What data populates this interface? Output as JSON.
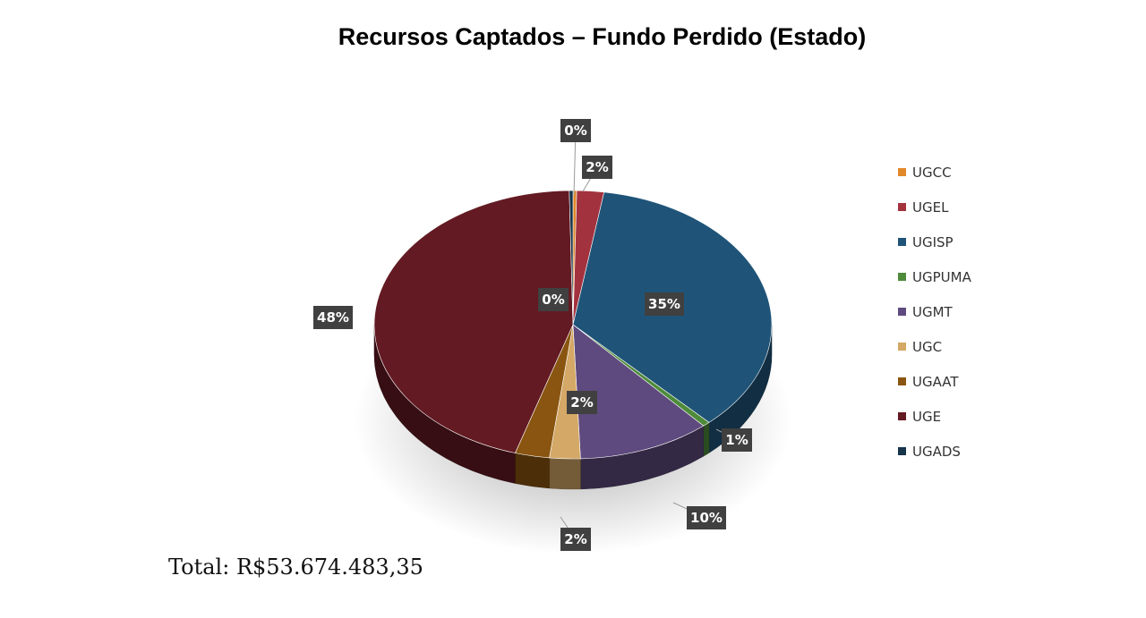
{
  "chart_data": {
    "type": "pie",
    "title": "Recursos Captados – Fundo Perdido (Estado)",
    "series": [
      {
        "name": "UGCC",
        "value": 0,
        "label": "0%",
        "color": "#E0882A"
      },
      {
        "name": "UGEL",
        "value": 2,
        "label": "2%",
        "color": "#A3323F"
      },
      {
        "name": "UGISP",
        "value": 35,
        "label": "35%",
        "color": "#1F5478"
      },
      {
        "name": "UGPUMA",
        "value": 1,
        "label": "1%",
        "color": "#4E8B3A"
      },
      {
        "name": "UGMT",
        "value": 10,
        "label": "10%",
        "color": "#5E4A7E"
      },
      {
        "name": "UGC",
        "value": 2,
        "label": "2%",
        "color": "#D4A866"
      },
      {
        "name": "UGAAT",
        "value": 2,
        "label": "2%",
        "color": "#8A5510"
      },
      {
        "name": "UGE",
        "value": 48,
        "label": "48%",
        "color": "#631A22"
      },
      {
        "name": "UGADS",
        "value": 0,
        "label": "0%",
        "color": "#16344A"
      }
    ],
    "legend_position": "right"
  },
  "total": "Total: R$53.674.483,35"
}
